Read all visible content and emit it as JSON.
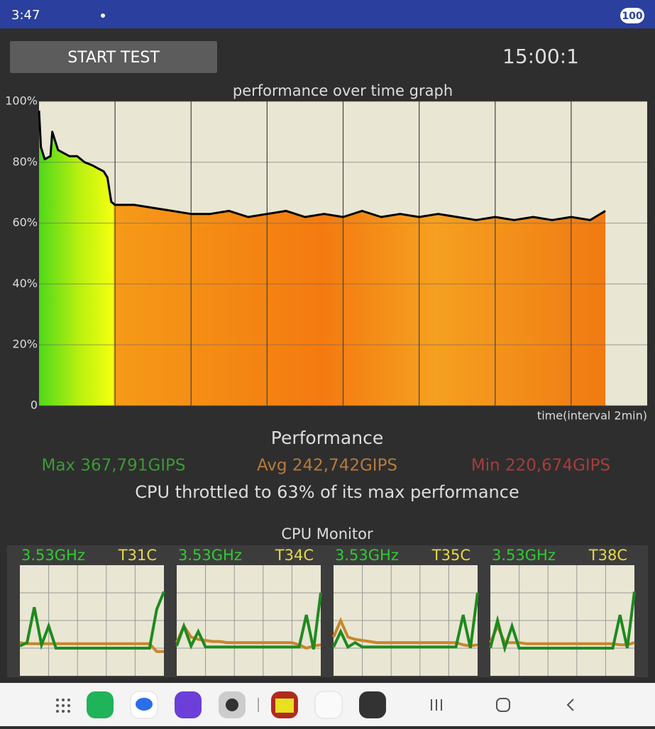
{
  "status_bar": {
    "time": "3:47",
    "battery": "100"
  },
  "start_button": "START TEST",
  "timer": "15:00:1",
  "graph": {
    "title": "performance over time graph",
    "x_label": "time(interval 2min)",
    "xlim": [
      0,
      16
    ],
    "xticks": [
      2,
      4,
      6,
      8,
      10,
      12,
      14
    ],
    "ylim": [
      0,
      100
    ],
    "yticks": [
      {
        "value": 0,
        "label": "0"
      },
      {
        "value": 20,
        "label": "20%"
      },
      {
        "value": 40,
        "label": "40%"
      },
      {
        "value": 60,
        "label": "60%"
      },
      {
        "value": 80,
        "label": "80%"
      },
      {
        "value": 100,
        "label": "100%"
      }
    ],
    "x": [
      0,
      0.05,
      0.15,
      0.3,
      0.35,
      0.5,
      0.65,
      0.8,
      1.0,
      1.2,
      1.4,
      1.55,
      1.7,
      1.8,
      1.9,
      2.0,
      2.5,
      3,
      3.5,
      4,
      4.5,
      5,
      5.5,
      6,
      6.5,
      7,
      7.5,
      8,
      8.5,
      9,
      9.5,
      10,
      10.5,
      11,
      11.5,
      12,
      12.5,
      13,
      13.5,
      14,
      14.5,
      14.9
    ],
    "values": [
      97,
      85,
      81,
      82,
      90,
      84,
      83,
      82,
      82,
      80,
      79,
      78,
      77,
      75,
      67,
      66,
      66,
      65,
      64,
      63,
      63,
      64,
      62,
      63,
      64,
      62,
      63,
      62,
      64,
      62,
      63,
      62,
      63,
      62,
      61,
      62,
      61,
      62,
      61,
      62,
      61,
      64
    ]
  },
  "performance": {
    "title": "Performance",
    "max": "Max 367,791GIPS",
    "avg": "Avg 242,742GIPS",
    "min": "Min 220,674GIPS",
    "summary": "CPU throttled to 63% of its max performance"
  },
  "cpu_monitor": {
    "title": "CPU Monitor",
    "cores": [
      {
        "freq": "3.53GHz",
        "temp": "T31C",
        "freq_line": [
          27,
          30,
          62,
          28,
          45,
          25,
          25,
          25,
          25,
          25,
          25,
          25,
          25,
          25,
          25,
          25,
          25,
          25,
          25,
          60,
          76
        ],
        "temp_line": [
          30,
          29,
          29,
          29,
          29,
          29,
          29,
          29,
          29,
          29,
          29,
          29,
          29,
          29,
          29,
          29,
          29,
          29,
          29,
          22,
          22
        ]
      },
      {
        "freq": "3.53GHz",
        "temp": "T34C",
        "freq_line": [
          27,
          45,
          27,
          40,
          26,
          26,
          26,
          26,
          26,
          26,
          26,
          26,
          26,
          26,
          26,
          26,
          26,
          26,
          55,
          24,
          75
        ],
        "temp_line": [
          30,
          45,
          35,
          33,
          32,
          31,
          31,
          30,
          30,
          30,
          30,
          30,
          30,
          30,
          30,
          30,
          30,
          28,
          25,
          27,
          28
        ]
      },
      {
        "freq": "3.53GHz",
        "temp": "T35C",
        "freq_line": [
          26,
          40,
          26,
          30,
          26,
          26,
          26,
          26,
          26,
          26,
          26,
          26,
          26,
          26,
          26,
          26,
          26,
          26,
          55,
          25,
          75
        ],
        "temp_line": [
          35,
          50,
          35,
          33,
          32,
          31,
          30,
          30,
          30,
          30,
          30,
          30,
          30,
          30,
          30,
          30,
          30,
          30,
          28,
          27,
          28
        ]
      },
      {
        "freq": "3.53GHz",
        "temp": "T38C",
        "freq_line": [
          25,
          50,
          25,
          45,
          25,
          25,
          25,
          25,
          25,
          25,
          25,
          25,
          25,
          25,
          25,
          25,
          25,
          25,
          55,
          25,
          76
        ],
        "temp_line": [
          30,
          45,
          30,
          30,
          30,
          29,
          29,
          29,
          29,
          29,
          29,
          29,
          29,
          29,
          29,
          29,
          29,
          29,
          28,
          28,
          30
        ]
      }
    ]
  }
}
